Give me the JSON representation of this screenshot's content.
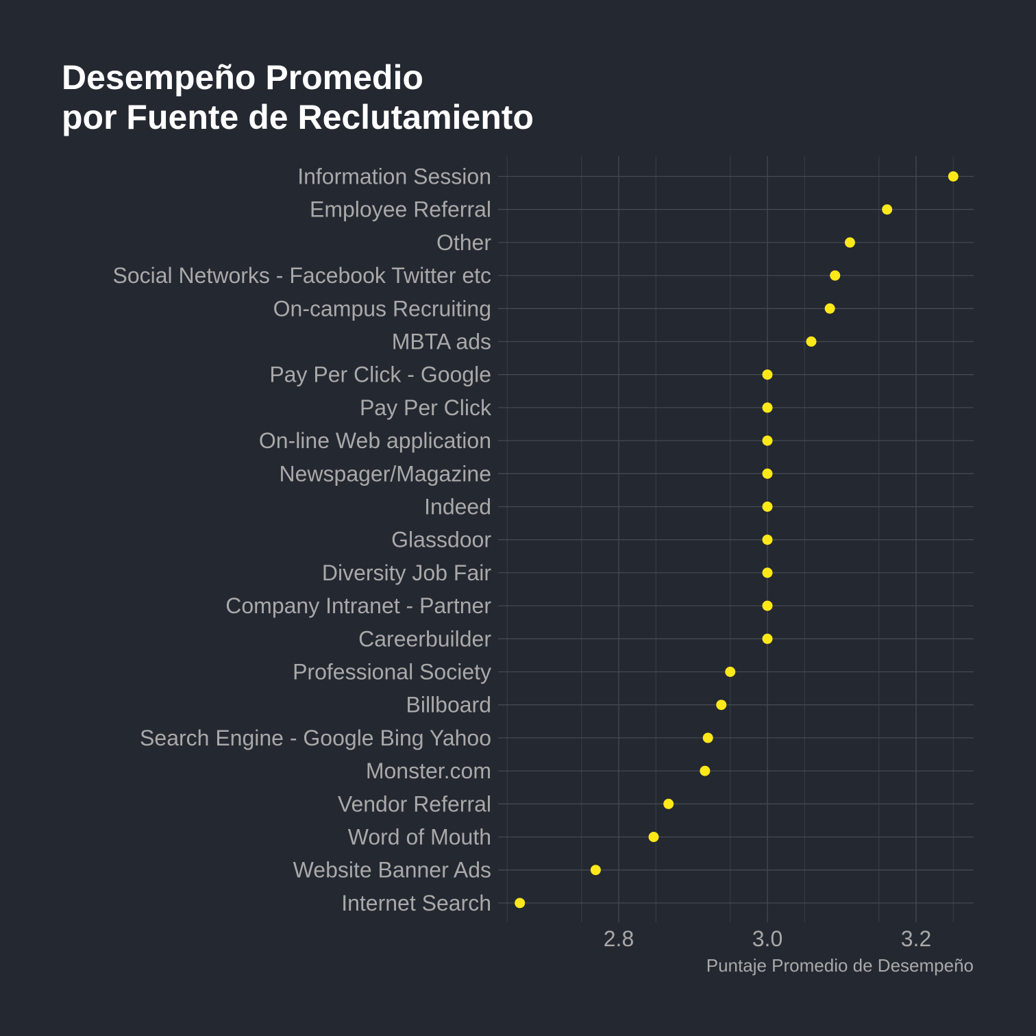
{
  "chart_data": {
    "type": "scatter",
    "title_lines": [
      "Desempeño Promedio",
      "por Fuente de Reclutamiento"
    ],
    "xlabel": "Puntaje Promedio de Desempeño",
    "ylabel": "",
    "xlim": [
      2.65,
      3.28
    ],
    "xticks": [
      2.8,
      3.0,
      3.2
    ],
    "xtick_labels": [
      "2.8",
      "3.0",
      "3.2"
    ],
    "grid": true,
    "point_color": "#FFE81A",
    "background": "#242831",
    "categories": [
      "Information Session",
      "Employee Referral",
      "Other",
      "Social Networks - Facebook Twitter etc",
      "On-campus Recruiting",
      "MBTA ads",
      "Pay Per Click - Google",
      "Pay Per Click",
      "On-line Web application",
      "Newspager/Magazine",
      "Indeed",
      "Glassdoor",
      "Diversity Job Fair",
      "Company Intranet - Partner",
      "Careerbuilder",
      "Professional Society",
      "Billboard",
      "Search Engine - Google Bing Yahoo",
      "Monster.com",
      "Vendor Referral",
      "Word of Mouth",
      "Website Banner Ads",
      "Internet Search"
    ],
    "values": [
      3.25,
      3.161,
      3.111,
      3.091,
      3.084,
      3.059,
      3.0,
      3.0,
      3.0,
      3.0,
      3.0,
      3.0,
      3.0,
      3.0,
      3.0,
      2.95,
      2.938,
      2.92,
      2.916,
      2.867,
      2.847,
      2.769,
      2.667
    ]
  }
}
